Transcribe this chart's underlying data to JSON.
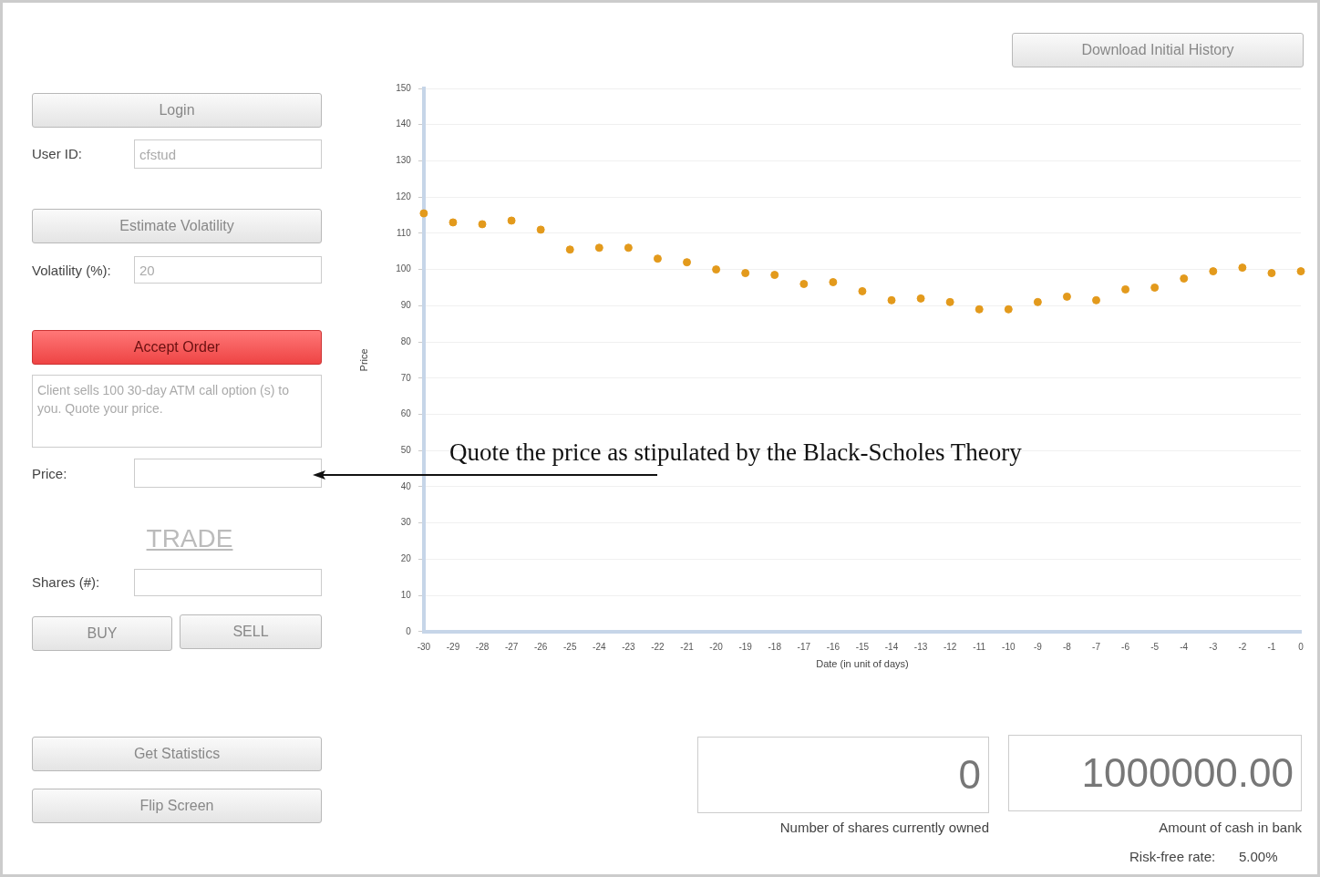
{
  "chart_data": {
    "type": "scatter",
    "xlabel": "Date (in unit of days)",
    "ylabel": "Price",
    "x": [
      -30,
      -29,
      -28,
      -27,
      -26,
      -25,
      -24,
      -23,
      -22,
      -21,
      -20,
      -19,
      -18,
      -17,
      -16,
      -15,
      -14,
      -13,
      -12,
      -11,
      -10,
      -9,
      -8,
      -7,
      -6,
      -5,
      -4,
      -3,
      -2,
      -1,
      0
    ],
    "series": [
      {
        "color": "#e39a1c",
        "values": [
          115.5,
          113,
          112.5,
          113.5,
          111,
          105.5,
          106,
          106,
          103,
          102,
          100,
          99,
          98.5,
          96,
          96.5,
          94,
          91.5,
          92,
          91,
          89,
          89,
          91,
          92.5,
          91.5,
          94.5,
          95,
          97.5,
          99.5,
          100.5,
          99,
          99.5
        ]
      }
    ],
    "xlim": [
      -30,
      0
    ],
    "xticks": [
      -30,
      -29,
      -28,
      -27,
      -26,
      -25,
      -24,
      -23,
      -22,
      -21,
      -20,
      -19,
      -18,
      -17,
      -16,
      -15,
      -14,
      -13,
      -12,
      -11,
      -10,
      -9,
      -8,
      -7,
      -6,
      -5,
      -4,
      -3,
      -2,
      -1,
      0
    ],
    "ylim": [
      0,
      150
    ],
    "yticks": [
      0,
      10,
      20,
      30,
      40,
      50,
      60,
      70,
      80,
      90,
      100,
      110,
      120,
      130,
      140,
      150
    ],
    "grid": "y",
    "legend": false,
    "marker": "circle",
    "annotations": [
      "Download Initial History",
      "Login",
      "User ID:",
      "cfstud",
      "Estimate Volatility",
      "Volatility (%):",
      "20",
      "Accept Order",
      "Client sells 100 30-day ATM call option (s) to you. Quote your price.",
      "Price:",
      "TRADE",
      "Shares (#):",
      "BUY",
      "SELL",
      "Get Statistics",
      "Flip Screen",
      "0",
      "1000000.00",
      "Number of shares currently owned",
      "Amount of cash in bank",
      "Risk-free rate:",
      "5.00%",
      "Quote the price as stipulated by the Black-Scholes Theory"
    ]
  }
}
